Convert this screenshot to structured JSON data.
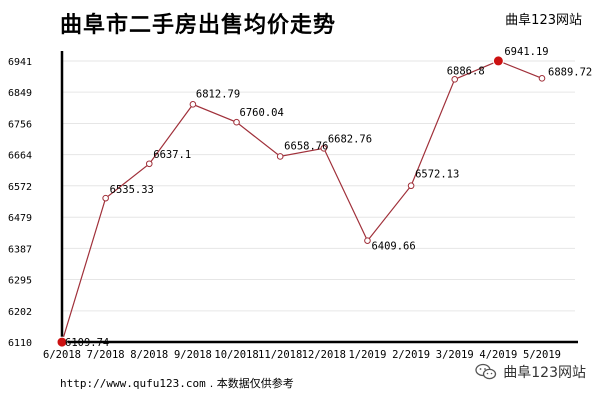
{
  "header": {
    "title": "曲阜市二手房出售均价走势",
    "brand": "曲阜123网站"
  },
  "footer": {
    "url": "http://www.qufu123.com",
    "note": ". 本数据仅供参考"
  },
  "watermark": {
    "text": "曲阜123网站",
    "icon": "wechat-icon"
  },
  "colors": {
    "line": "#a0303a",
    "highlight": "#cc1111",
    "axis": "#000000",
    "grid": "#e6e6e6"
  },
  "chart_data": {
    "type": "line",
    "title": "曲阜市二手房出售均价走势",
    "xlabel": "",
    "ylabel": "",
    "categories": [
      "6/2018",
      "7/2018",
      "8/2018",
      "9/2018",
      "10/2018",
      "11/2018",
      "12/2018",
      "1/2019",
      "2/2019",
      "3/2019",
      "4/2019",
      "5/2019"
    ],
    "y_ticks": [
      "6110",
      "6202",
      "6295",
      "6387",
      "6479",
      "6572",
      "6664",
      "6756",
      "6849",
      "6941"
    ],
    "ylim": [
      6110,
      6941
    ],
    "grid": true,
    "series": [
      {
        "values": [
          6109.74,
          6535.33,
          6637.1,
          6812.79,
          6760.04,
          6658.76,
          6682.76,
          6409.66,
          6572.13,
          6886.8,
          6941.19,
          6889.72
        ],
        "labels": [
          "6109.74",
          "6535.33",
          "6637.1",
          "6812.79",
          "6760.04",
          "6658.76",
          "6682.76",
          "6409.66",
          "6572.13",
          "6886.8",
          "6941.19",
          "6889.72"
        ],
        "highlighted_points": [
          "6/2018",
          "4/2019"
        ]
      }
    ]
  }
}
